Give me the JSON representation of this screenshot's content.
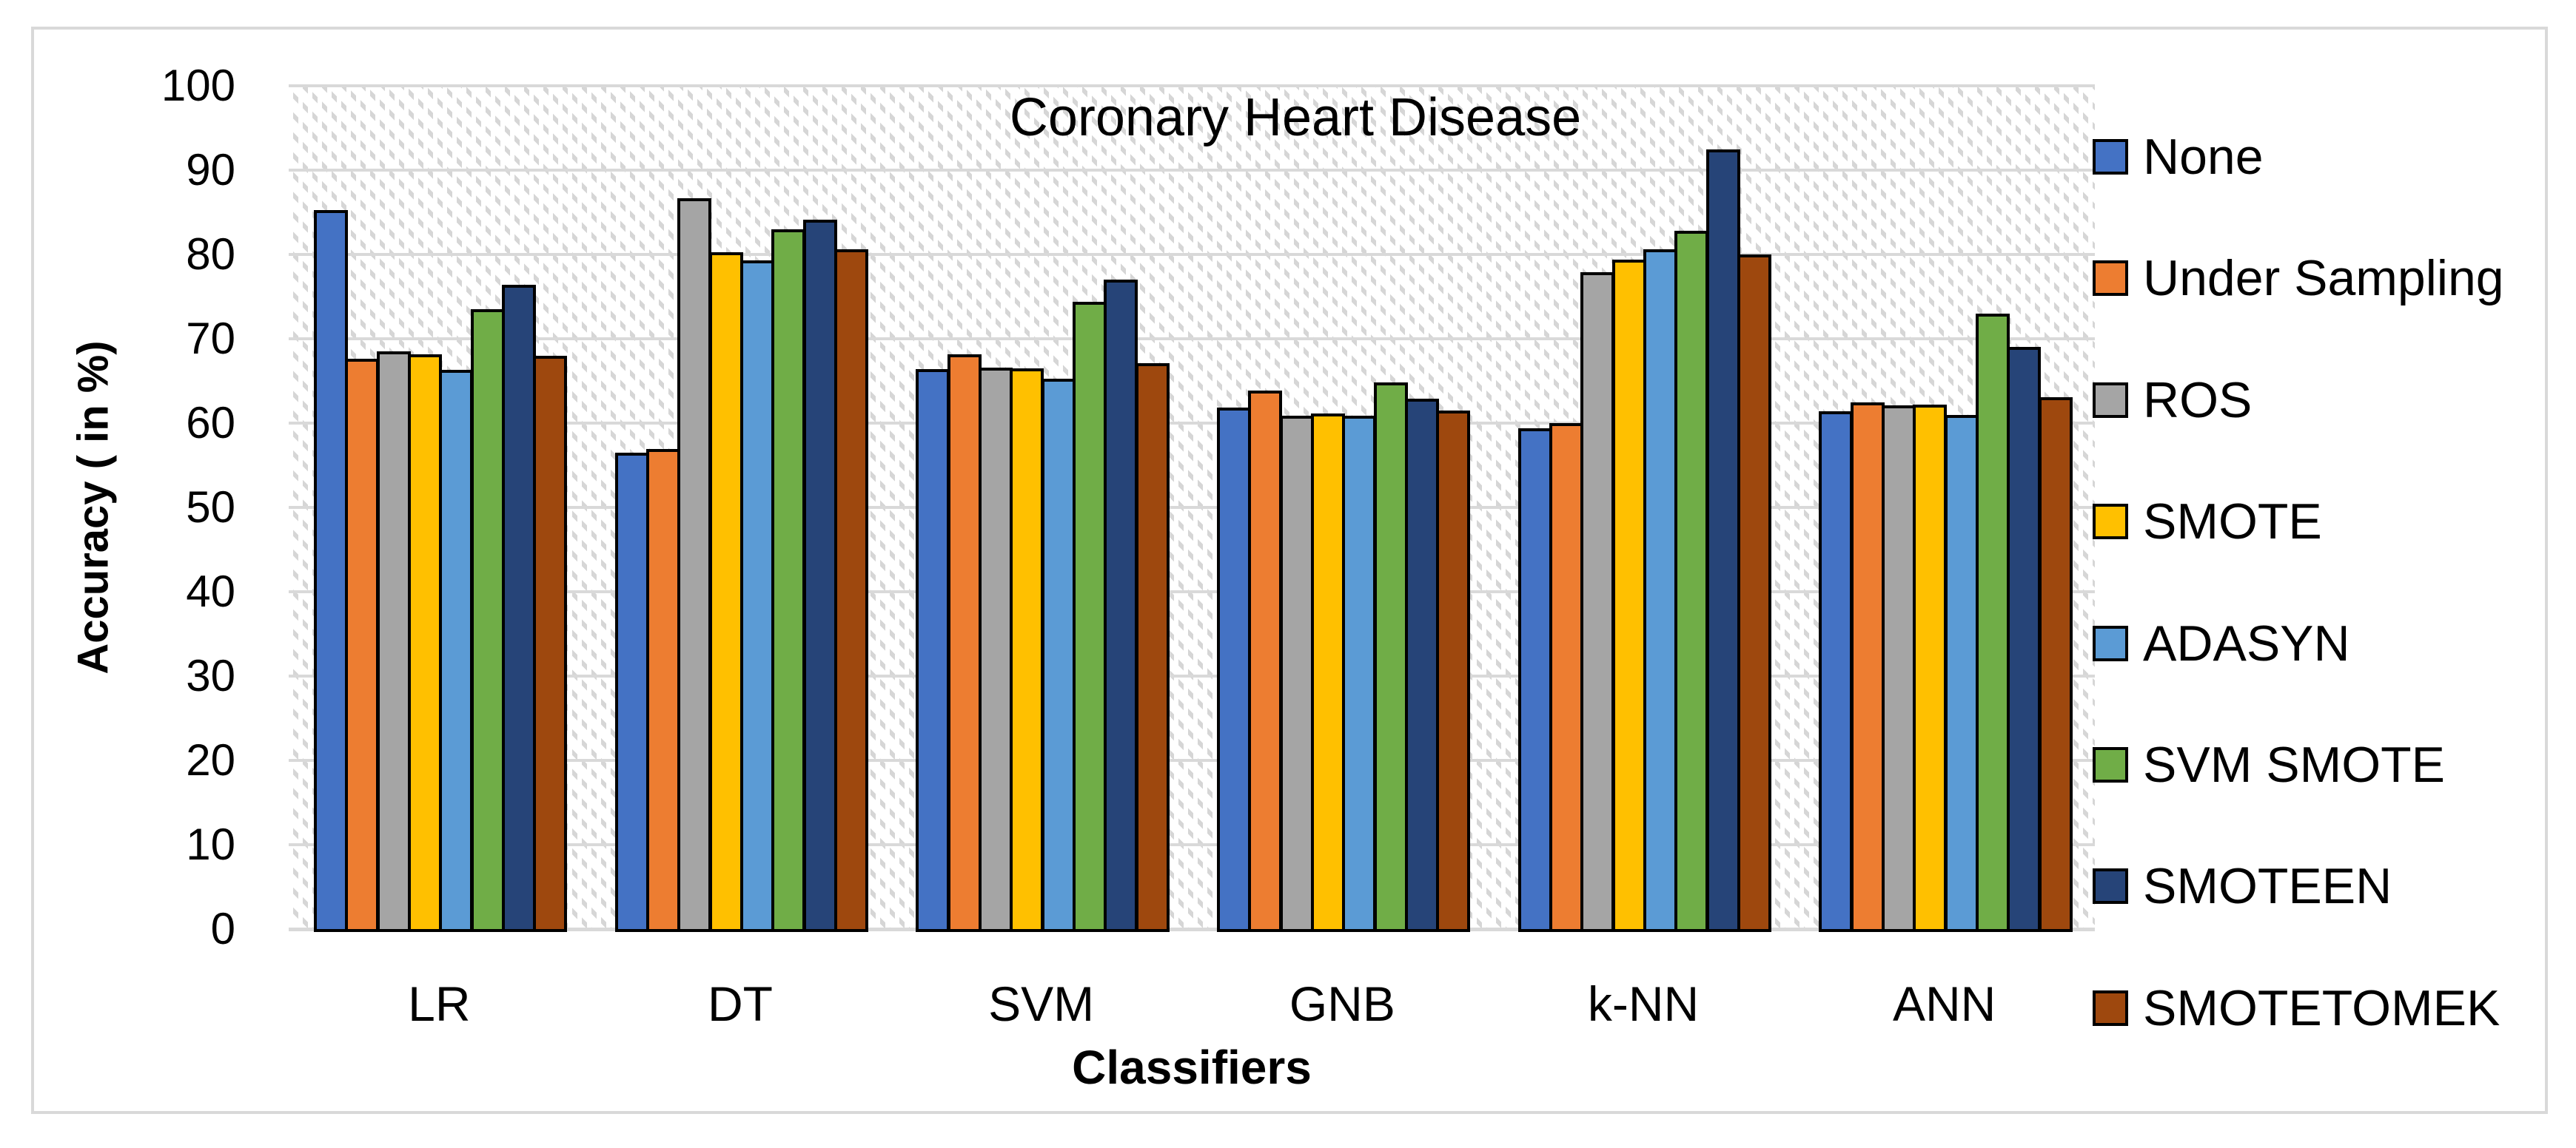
{
  "figure": {
    "background": "#ffffff",
    "border_color": "#d9d9d9",
    "gridline_color": "#d9d9d9",
    "axis_line_color": "#d9d9d9",
    "bar_outline_color": "#000000",
    "text_color": "#000000"
  },
  "chart_data": {
    "type": "bar",
    "title": "Coronary Heart Disease",
    "xlabel": "Classifiers",
    "ylabel": "Accuracy ( in %)",
    "ylim": [
      0,
      100
    ],
    "yticks": [
      0,
      10,
      20,
      30,
      40,
      50,
      60,
      70,
      80,
      90,
      100
    ],
    "grid": "horizontal",
    "plot_background": "light-diagonal-hatch",
    "legend_position": "right",
    "categories": [
      "LR",
      "DT",
      "SVM",
      "GNB",
      "k-NN",
      "ANN"
    ],
    "series": [
      {
        "name": "None",
        "color": "#4472C4",
        "values": [
          85.3,
          56.5,
          66.4,
          61.8,
          59.4,
          61.4
        ]
      },
      {
        "name": "Under Sampling",
        "color": "#ED7D31",
        "values": [
          67.6,
          56.9,
          68.2,
          63.9,
          60.0,
          62.5
        ]
      },
      {
        "name": "ROS",
        "color": "#A5A5A5",
        "values": [
          68.5,
          86.7,
          66.6,
          60.9,
          77.9,
          62.1
        ]
      },
      {
        "name": "SMOTE",
        "color": "#FFC000",
        "values": [
          68.2,
          80.3,
          66.5,
          61.1,
          79.4,
          62.2
        ]
      },
      {
        "name": "ADASYN",
        "color": "#5B9BD5",
        "values": [
          66.3,
          79.3,
          65.3,
          60.9,
          80.6,
          61.0
        ]
      },
      {
        "name": "SVM SMOTE",
        "color": "#70AD47",
        "values": [
          73.5,
          83.0,
          74.4,
          64.8,
          82.8,
          73.0
        ]
      },
      {
        "name": "SMOTEEN",
        "color": "#264478",
        "values": [
          76.4,
          84.1,
          77.0,
          62.9,
          92.5,
          69.0
        ]
      },
      {
        "name": "SMOTETOMEK",
        "color": "#9E480E",
        "values": [
          68.0,
          80.6,
          67.1,
          61.5,
          80.0,
          63.1
        ]
      }
    ]
  }
}
